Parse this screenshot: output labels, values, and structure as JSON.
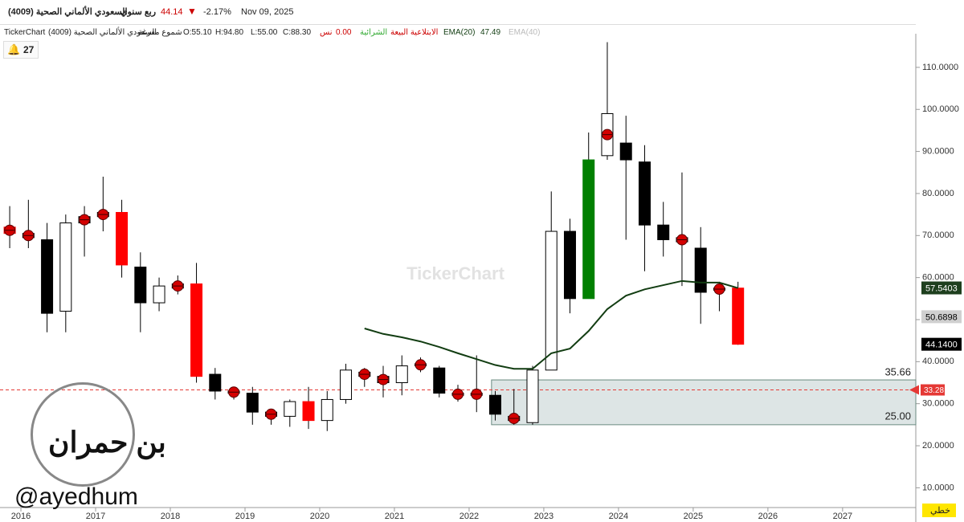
{
  "header": {
    "symbol": "السعودي الألماني الصحية (4009)",
    "period": "ربع سنوي",
    "price": "44.14",
    "change": "-2.17%",
    "date": "Nov 09, 2025"
  },
  "legend_bar": {
    "source": "TickerChart",
    "symbol": "السعودي الألماني الصحية (4009)",
    "style": "شموع مفرغة",
    "open": "O:55.10",
    "high": "H:94.80",
    "low": "L:55.00",
    "close": "C:88.30",
    "indicator": "نس",
    "indicator_value": "0.00",
    "pattern_buy": "الشرائية",
    "pattern_sell": "الابتلاعية البيعة",
    "ema20_value": "47.49",
    "ema40": "EMA(40)"
  },
  "alerts_count": "27",
  "watermark": "TickerChart",
  "logo": {
    "name": "بن حمران",
    "handle": "@ayedhum"
  },
  "scale_mode": "خطي",
  "chart_data": {
    "type": "candlestick",
    "x": [
      2015.85,
      2016.1,
      2016.35,
      2016.6,
      2016.85,
      2017.1,
      2017.35,
      2017.6,
      2017.85,
      2018.1,
      2018.35,
      2018.6,
      2018.85,
      2019.1,
      2019.35,
      2019.6,
      2019.85,
      2020.1,
      2020.35,
      2020.6,
      2020.85,
      2021.1,
      2021.35,
      2021.6,
      2021.85,
      2022.1,
      2022.35,
      2022.6,
      2022.85,
      2023.1,
      2023.35,
      2023.6,
      2023.85,
      2024.1,
      2024.35,
      2024.6,
      2024.85,
      2025.1,
      2025.35,
      2025.6
    ],
    "series": [
      {
        "open": [
          72,
          70.5,
          69,
          52,
          73,
          74.5,
          75.5,
          62.5,
          54,
          58.5,
          58.5,
          37,
          33,
          32.5,
          28,
          27,
          30.5,
          26,
          31,
          37.5,
          36.5,
          35,
          39,
          38.5,
          32.5,
          32,
          32,
          27,
          25.5,
          38,
          71,
          55,
          89,
          92,
          87.5,
          72.5,
          69.5,
          67,
          57.5,
          57.5
        ],
        "high": [
          77,
          78.5,
          73,
          75,
          77,
          84,
          78.5,
          66,
          60,
          60.5,
          63.5,
          38.5,
          34,
          34,
          28.5,
          31,
          34,
          33,
          39.5,
          38.5,
          39,
          41.5,
          41,
          39,
          34.5,
          41.5,
          33,
          33.5,
          39,
          80.5,
          74,
          94.5,
          116,
          98.5,
          91.5,
          78,
          85,
          72,
          59,
          59
        ],
        "low": [
          67,
          67,
          47,
          47,
          65,
          71,
          60,
          47,
          52,
          56,
          35,
          31,
          31,
          25,
          25,
          24.5,
          24,
          23.5,
          30,
          34,
          31.5,
          32,
          37.5,
          31.5,
          30.5,
          28,
          26,
          25,
          25,
          38,
          51.5,
          55,
          88,
          69,
          61.5,
          65,
          58,
          49,
          52,
          44
        ],
        "close": [
          70.5,
          69.5,
          51.5,
          73,
          74.5,
          75.5,
          63,
          54,
          58,
          57.5,
          36.5,
          33,
          32.5,
          28,
          27,
          30.5,
          26,
          31,
          38,
          36.5,
          35,
          39,
          39.5,
          32.5,
          32,
          32.5,
          27.5,
          26,
          38,
          71,
          55,
          88,
          99,
          88,
          72.5,
          69,
          68.5,
          56.5,
          57,
          44.14
        ],
        "colors": [
          "#ff0000",
          "#000000",
          "#000000",
          "#ffffff",
          "#000000",
          "#000000",
          "#ff0000",
          "#000000",
          "#ffffff",
          "#000000",
          "#ff0000",
          "#000000",
          "#000000",
          "#000000",
          "#000000",
          "#ffffff",
          "#ff0000",
          "#ffffff",
          "#ffffff",
          "#000000",
          "#000000",
          "#ffffff",
          "#000000",
          "#000000",
          "#000000",
          "#000000",
          "#000000",
          "#000000",
          "#ffffff",
          "#ffffff",
          "#000000",
          "#008000",
          "#ffffff",
          "#000000",
          "#000000",
          "#000000",
          "#000000",
          "#000000",
          "#000000",
          "#ff0000"
        ],
        "signals": [
          true,
          true,
          false,
          false,
          true,
          true,
          false,
          false,
          false,
          true,
          false,
          false,
          true,
          false,
          true,
          false,
          false,
          false,
          false,
          true,
          true,
          false,
          true,
          false,
          true,
          true,
          false,
          true,
          false,
          false,
          false,
          false,
          true,
          false,
          false,
          false,
          true,
          false,
          true,
          false
        ]
      },
      {
        "name": "EMA(20)",
        "color": "#123d12",
        "values": [
          null,
          null,
          null,
          null,
          null,
          null,
          null,
          null,
          null,
          null,
          null,
          null,
          null,
          null,
          null,
          null,
          null,
          null,
          null,
          47.9,
          46.6,
          45.8,
          44.8,
          43.5,
          42.0,
          40.6,
          39.2,
          38.3,
          38.3,
          42.0,
          43.1,
          47.3,
          52.5,
          55.7,
          57.2,
          58.2,
          59.2,
          58.8,
          58.8,
          57.5
        ]
      }
    ],
    "xlim": [
      2015.72,
      2027.98
    ],
    "xticks": [
      2016,
      2017,
      2018,
      2019,
      2020,
      2021,
      2022,
      2023,
      2024,
      2025,
      2026,
      2027
    ],
    "ylim": [
      5.3,
      118
    ],
    "yticks": [
      {
        "value": 10,
        "label": "10.0000"
      },
      {
        "value": 20,
        "label": "20.0000"
      },
      {
        "value": 30,
        "label": "30.0000"
      },
      {
        "value": 40,
        "label": "40.0000"
      },
      {
        "value": 50,
        "label": "50.0000"
      },
      {
        "value": 60,
        "label": "60.0000"
      },
      {
        "value": 70,
        "label": "70.0000"
      },
      {
        "value": 80,
        "label": "80.0000"
      },
      {
        "value": 90,
        "label": "90.0000"
      },
      {
        "value": 100,
        "label": "100.0000"
      },
      {
        "value": 110,
        "label": "110.0000"
      }
    ],
    "zone": {
      "from": 2022.3,
      "high": 35.66,
      "low": {
        "value": 25,
        "label": "25.00"
      },
      "color": "#dde5e5"
    },
    "alert_line": {
      "value": 33.28,
      "color": "#e53935"
    },
    "price_tags": [
      {
        "value": 57.5403,
        "color": "#1e3f1e",
        "text_color": "#ffffff"
      },
      {
        "value": 50.6898,
        "color": "#d0d0d0",
        "text_color": "#000000"
      },
      {
        "value": 44.14,
        "label": "44.1400",
        "color": "#000000",
        "text_color": "#ffffff"
      }
    ]
  }
}
